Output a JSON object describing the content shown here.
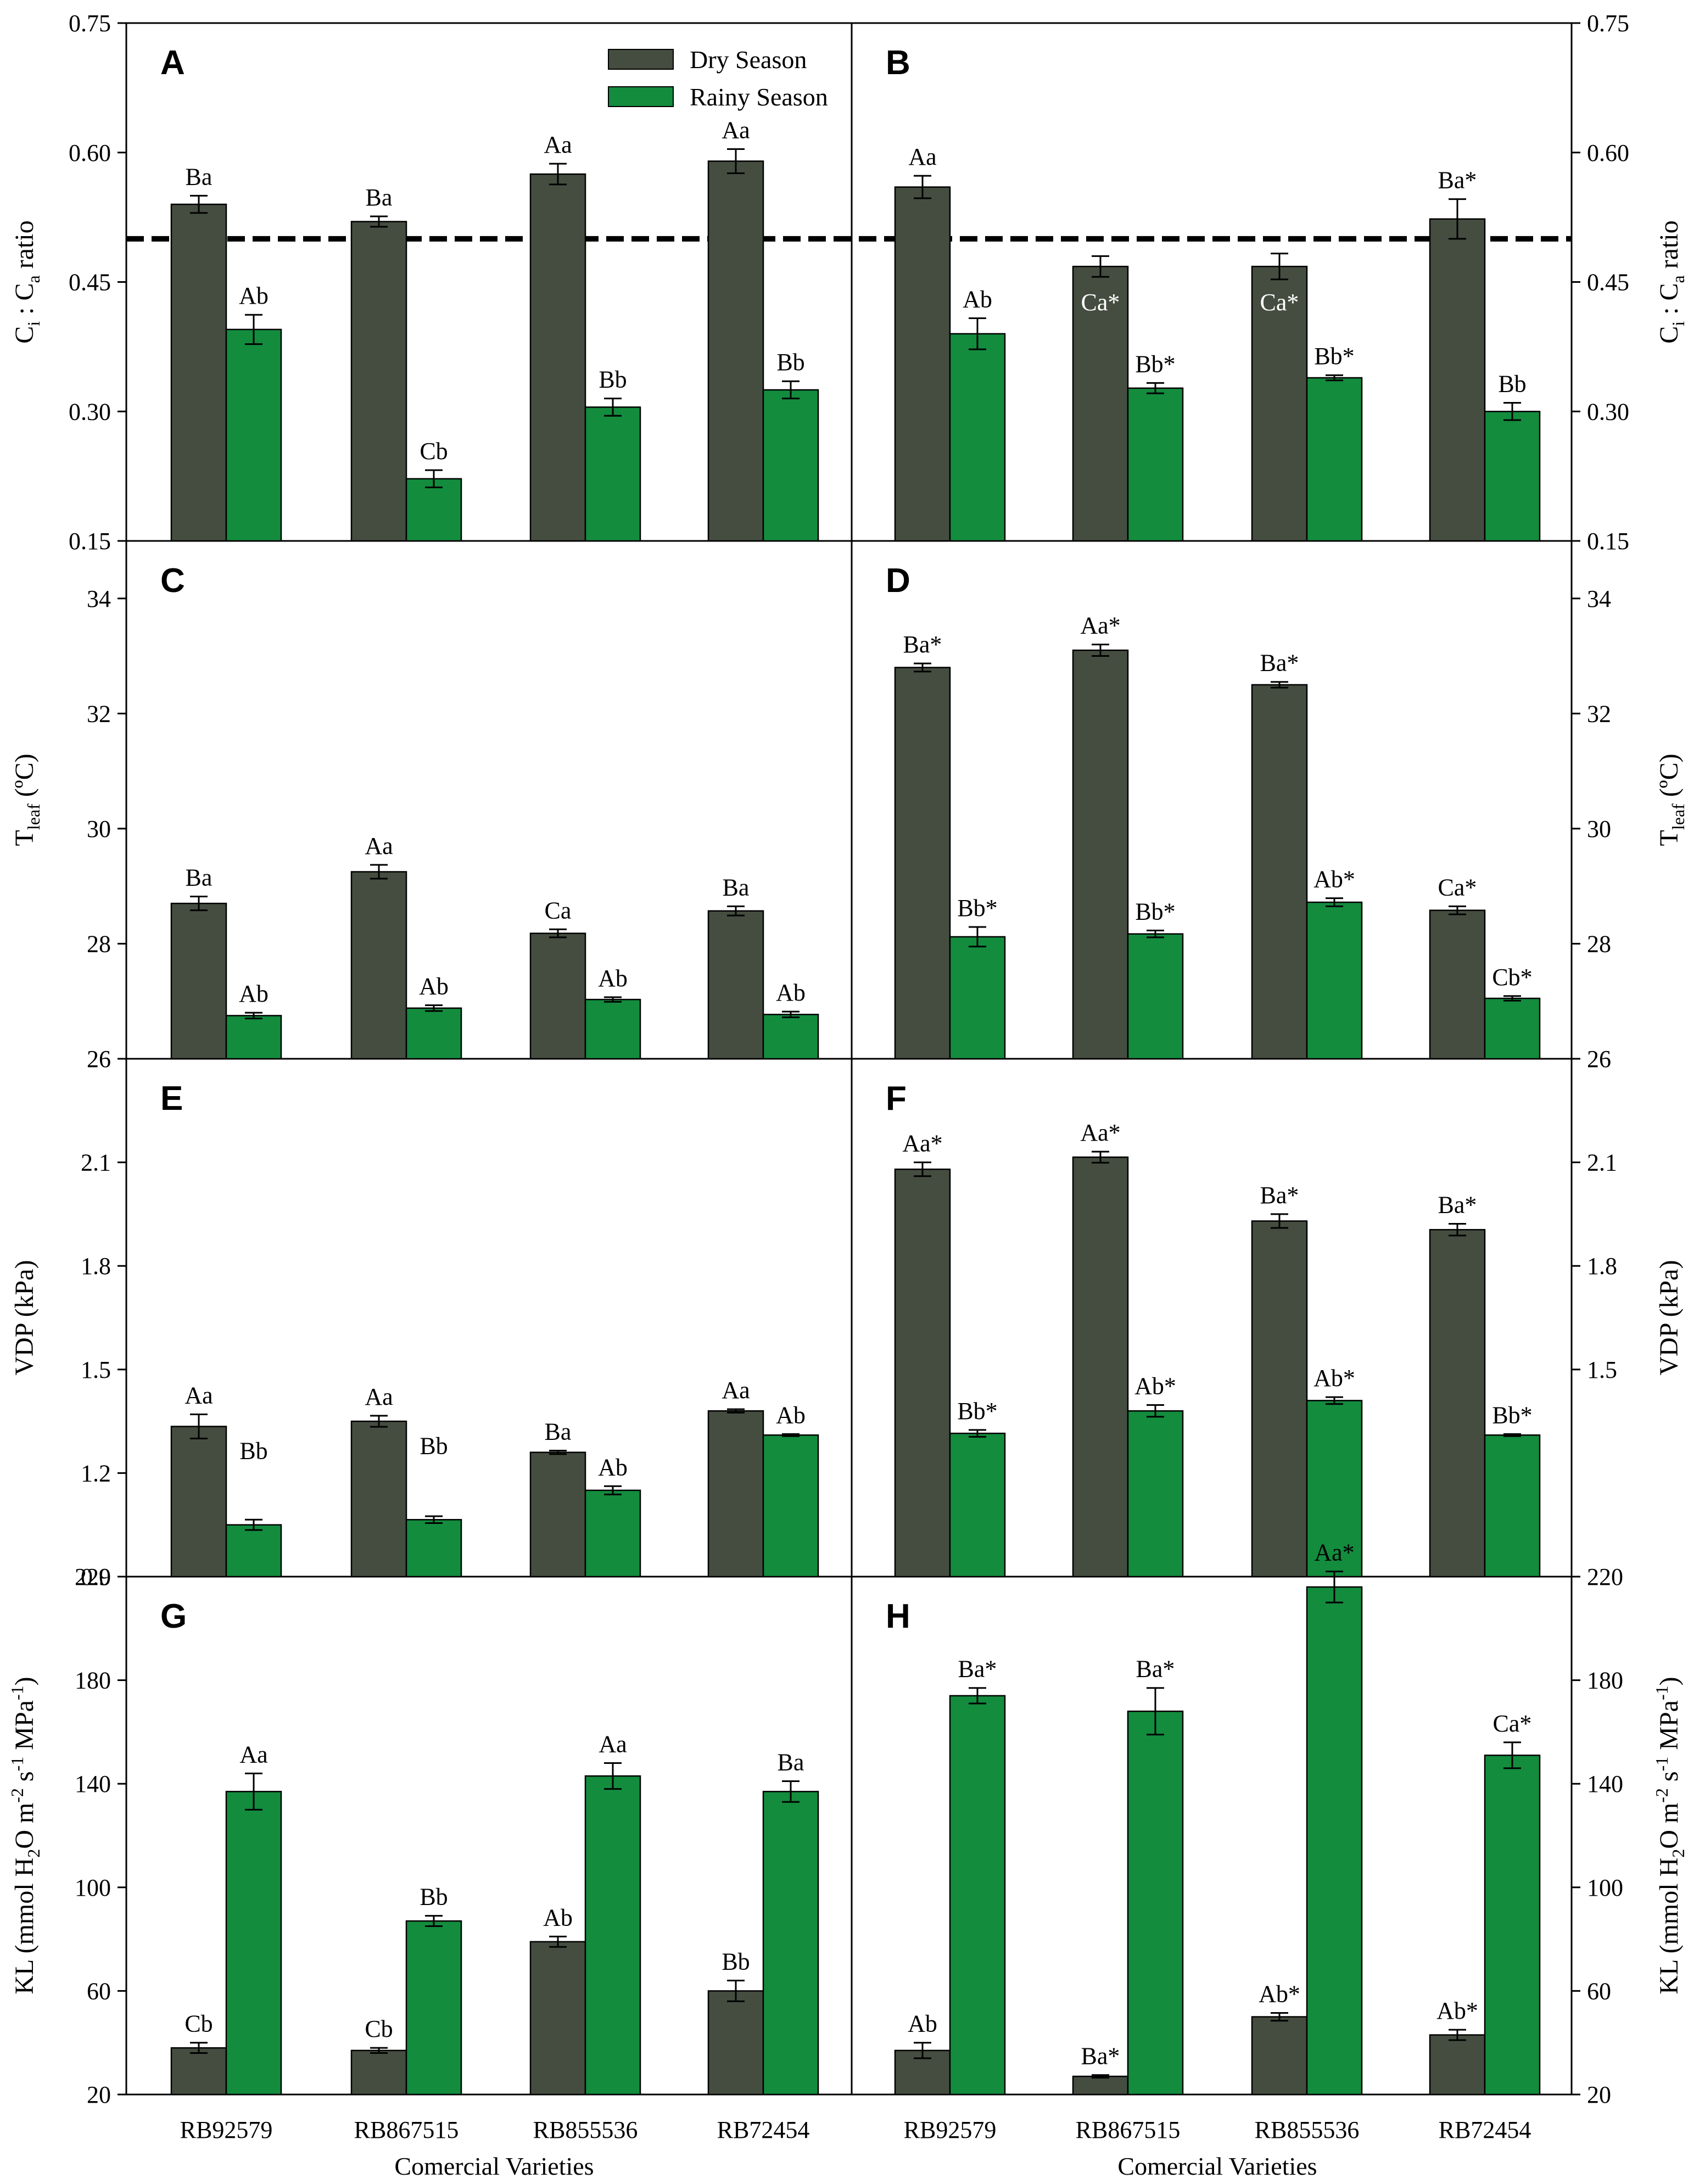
{
  "chart_data": {
    "type": "bar",
    "xlabel": "Comercial Varieties",
    "categories": [
      "RB92579",
      "RB867515",
      "RB855536",
      "RB72454"
    ],
    "legend": [
      {
        "name": "Dry Season",
        "color": "#454d40"
      },
      {
        "name": "Rainy Season",
        "color": "#138c3e"
      }
    ],
    "rows": [
      {
        "ylabel": {
          "main": "C",
          "sub1": "i",
          "mid": " : C",
          "sub2": "a",
          "tail": " ratio"
        },
        "ylim": [
          0.15,
          0.75
        ],
        "ticks": [
          "0.15",
          "0.30",
          "0.45",
          "0.60",
          "0.75"
        ],
        "tick_values": [
          0.15,
          0.3,
          0.45,
          0.6,
          0.75
        ],
        "reference_line": 0.5
      },
      {
        "ylabel": {
          "main": "T",
          "sub1": "leaf",
          "mid": " (ºC)",
          "sub2": "",
          "tail": ""
        },
        "ylim": [
          26,
          35
        ],
        "ticks": [
          "26",
          "28",
          "30",
          "32",
          "34"
        ],
        "tick_values": [
          26,
          28,
          30,
          32,
          34
        ]
      },
      {
        "ylabel": {
          "main": "VDP (kPa)",
          "sub1": "",
          "mid": "",
          "sub2": "",
          "tail": ""
        },
        "ylim": [
          0.9,
          2.4
        ],
        "ticks": [
          "0.9",
          "1.2",
          "1.5",
          "1.8",
          "2.1"
        ],
        "tick_values": [
          0.9,
          1.2,
          1.5,
          1.8,
          2.1
        ],
        "ticks_right": [
          "1.5",
          "1.8",
          "2.1"
        ],
        "tick_values_right": [
          1.5,
          1.8,
          2.1
        ]
      },
      {
        "ylabel": {
          "main": "KL (mmol H",
          "sub1": "2",
          "mid": "O m",
          "sup1": "-2",
          "mid2": " s",
          "sup2": "-1",
          "tail": " MPa",
          "sup3": "-1",
          "end": ")"
        },
        "ylim": [
          20,
          220
        ],
        "ticks": [
          "20",
          "60",
          "100",
          "140",
          "180",
          "220"
        ],
        "tick_values": [
          20,
          60,
          100,
          140,
          180,
          220
        ]
      }
    ],
    "panels": [
      {
        "letter": "A",
        "row": 0,
        "col": 0,
        "dry": {
          "values": [
            0.54,
            0.52,
            0.575,
            0.59
          ],
          "errors": [
            0.01,
            0.006,
            0.012,
            0.014
          ],
          "labels": [
            "Ba",
            "Ba",
            "Aa",
            "Aa"
          ]
        },
        "rainy": {
          "values": [
            0.395,
            0.222,
            0.305,
            0.325
          ],
          "errors": [
            0.017,
            0.01,
            0.01,
            0.01
          ],
          "labels": [
            "Ab",
            "Cb",
            "Bb",
            "Bb"
          ]
        }
      },
      {
        "letter": "B",
        "row": 0,
        "col": 1,
        "dry": {
          "values": [
            0.56,
            0.468,
            0.468,
            0.523
          ],
          "errors": [
            0.013,
            0.012,
            0.015,
            0.023
          ],
          "labels": [
            "Aa",
            "Ca*",
            "Ca*",
            "Ba*"
          ]
        },
        "rainy": {
          "values": [
            0.39,
            0.327,
            0.339,
            0.3
          ],
          "errors": [
            0.018,
            0.006,
            0.003,
            0.01
          ],
          "labels": [
            "Ab",
            "Bb*",
            "Bb*",
            "Bb"
          ]
        }
      },
      {
        "letter": "C",
        "row": 1,
        "col": 0,
        "dry": {
          "values": [
            28.7,
            29.25,
            28.18,
            28.57
          ],
          "errors": [
            0.12,
            0.12,
            0.07,
            0.08
          ],
          "labels": [
            "Ba",
            "Aa",
            "Ca",
            "Ba"
          ]
        },
        "rainy": {
          "values": [
            26.75,
            26.88,
            27.03,
            26.77
          ],
          "errors": [
            0.05,
            0.05,
            0.04,
            0.05
          ],
          "labels": [
            "Ab",
            "Ab",
            "Ab",
            "Ab"
          ]
        }
      },
      {
        "letter": "D",
        "row": 1,
        "col": 1,
        "dry": {
          "values": [
            32.8,
            33.1,
            32.5,
            28.58
          ],
          "errors": [
            0.07,
            0.1,
            0.05,
            0.07
          ],
          "labels": [
            "Ba*",
            "Aa*",
            "Ba*",
            "Ca*"
          ]
        },
        "rainy": {
          "values": [
            28.12,
            28.17,
            28.72,
            27.05
          ],
          "errors": [
            0.17,
            0.06,
            0.07,
            0.04
          ],
          "labels": [
            "Bb*",
            "Bb*",
            "Ab*",
            "Cb*"
          ]
        }
      },
      {
        "letter": "E",
        "row": 2,
        "col": 0,
        "dry": {
          "values": [
            1.335,
            1.35,
            1.26,
            1.38
          ],
          "errors": [
            0.035,
            0.016,
            0.005,
            0.005
          ],
          "labels": [
            "Aa",
            "Aa",
            "Ba",
            "Aa"
          ]
        },
        "rainy": {
          "values": [
            1.05,
            1.065,
            1.15,
            1.31
          ],
          "errors": [
            0.015,
            0.01,
            0.012,
            0.003
          ],
          "labels": [
            "Bb",
            "Bb",
            "Ab",
            "Ab"
          ]
        }
      },
      {
        "letter": "F",
        "row": 2,
        "col": 1,
        "dry": {
          "values": [
            2.08,
            2.115,
            1.93,
            1.905
          ],
          "errors": [
            0.02,
            0.016,
            0.02,
            0.017
          ],
          "labels": [
            "Aa*",
            "Aa*",
            "Ba*",
            "Ba*"
          ]
        },
        "rainy": {
          "values": [
            1.315,
            1.38,
            1.41,
            1.31
          ],
          "errors": [
            0.01,
            0.017,
            0.01,
            0.003
          ],
          "labels": [
            "Bb*",
            "Ab*",
            "Ab*",
            "Bb*"
          ]
        }
      },
      {
        "letter": "G",
        "row": 3,
        "col": 0,
        "dry": {
          "values": [
            38,
            37,
            79,
            60
          ],
          "errors": [
            2,
            1,
            2,
            4
          ],
          "labels": [
            "Cb",
            "Cb",
            "Ab",
            "Bb"
          ]
        },
        "rainy": {
          "values": [
            137,
            87,
            143,
            137
          ],
          "errors": [
            7,
            2,
            5,
            4
          ],
          "labels": [
            "Aa",
            "Bb",
            "Aa",
            "Ba"
          ]
        }
      },
      {
        "letter": "H",
        "row": 3,
        "col": 1,
        "dry": {
          "values": [
            37,
            27,
            50,
            43
          ],
          "errors": [
            3,
            0.5,
            1.5,
            2
          ],
          "labels": [
            "Ab",
            "Ba*",
            "Ab*",
            "Ab*"
          ]
        },
        "rainy": {
          "values": [
            174,
            168,
            216,
            151
          ],
          "errors": [
            3,
            9,
            6,
            5
          ],
          "labels": [
            "Ba*",
            "Ba*",
            "Aa*",
            "Ca*"
          ]
        }
      }
    ]
  }
}
